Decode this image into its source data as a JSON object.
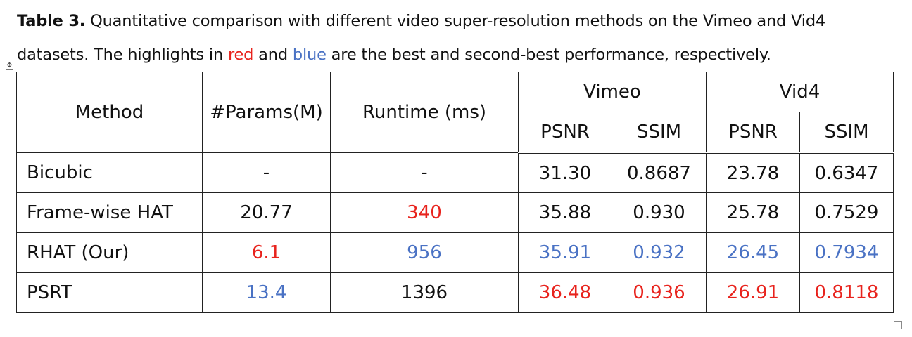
{
  "caption": {
    "label": "Table 3.",
    "part1": " Quantitative comparison with different video super-resolution methods on the Vimeo and Vid4 datasets. The highlights in ",
    "red_word": "red",
    "and_word": " and ",
    "blue_word": "blue",
    "part2": " are the best and second-best performance, respectively."
  },
  "table": {
    "headers": {
      "method": "Method",
      "params": "#Params(M)",
      "runtime": "Runtime (ms)",
      "vimeo": "Vimeo",
      "vid4": "Vid4",
      "psnr": "PSNR",
      "ssim": "SSIM"
    },
    "rows": [
      {
        "method": "Bicubic",
        "params": "-",
        "runtime": "-",
        "vimeo_psnr": "31.30",
        "vimeo_ssim": "0.8687",
        "vid4_psnr": "23.78",
        "vid4_ssim": "0.6347"
      },
      {
        "method": "Frame-wise HAT",
        "params": "20.77",
        "runtime": "340",
        "vimeo_psnr": "35.88",
        "vimeo_ssim": "0.930",
        "vid4_psnr": "25.78",
        "vid4_ssim": "0.7529"
      },
      {
        "method": "RHAT (Our)",
        "params": "6.1",
        "runtime": "956",
        "vimeo_psnr": "35.91",
        "vimeo_ssim": "0.932",
        "vid4_psnr": "26.45",
        "vid4_ssim": "0.7934"
      },
      {
        "method": "PSRT",
        "params": "13.4",
        "runtime": "1396",
        "vimeo_psnr": "36.48",
        "vimeo_ssim": "0.936",
        "vid4_psnr": "26.91",
        "vid4_ssim": "0.8118"
      }
    ]
  },
  "colors": {
    "best": "#e8231d",
    "second_best": "#4a72c4"
  }
}
